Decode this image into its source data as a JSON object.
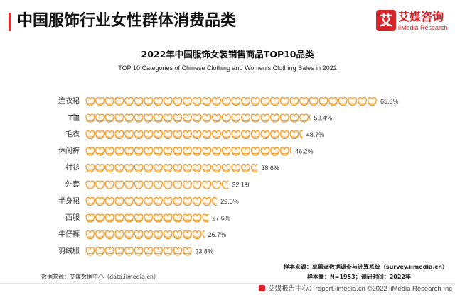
{
  "header": {
    "title": "中国服饰行业女性群体消费品类"
  },
  "logo": {
    "mark": "艾",
    "name": "艾媒咨询",
    "name_en": "iiMedia Research",
    "icon": "iimedia-logo-icon"
  },
  "colors": {
    "accent": "#e0322d",
    "brand": "#d8232a",
    "bar_stroke": "#f0911a",
    "bar_fill": "#fff6e6"
  },
  "chart_data": {
    "type": "bar",
    "orientation": "horizontal",
    "title": "2022年中国服饰女装销售商品TOP10品类",
    "subtitle": "TOP 10 Categories of Chinese Clothing and Women's Clothing Sales in 2022",
    "categories": [
      "连衣裙",
      "T恤",
      "毛衣",
      "休闲裤",
      "衬衫",
      "外套",
      "半身裙",
      "西服",
      "牛仔裤",
      "羽绒服"
    ],
    "values": [
      65.3,
      50.4,
      48.7,
      46.2,
      38.6,
      32.1,
      29.5,
      27.6,
      26.7,
      23.8
    ],
    "unit": "%",
    "bar_icon": "bra-icon",
    "grid": false,
    "xlabel": "",
    "ylabel": ""
  },
  "footer": {
    "data_source": "数据来源：艾媒数据中心（data.iimedia.cn）",
    "sample_source": "样本来源：草莓派数据调查与计算系统（survey.iimedia.cn）",
    "sample_size": "样本量：N=1953；调研时间：2022年",
    "report_center": "艾媒报告中心：report.iimedia.cn ©2022 iiMedia Research Inc"
  }
}
